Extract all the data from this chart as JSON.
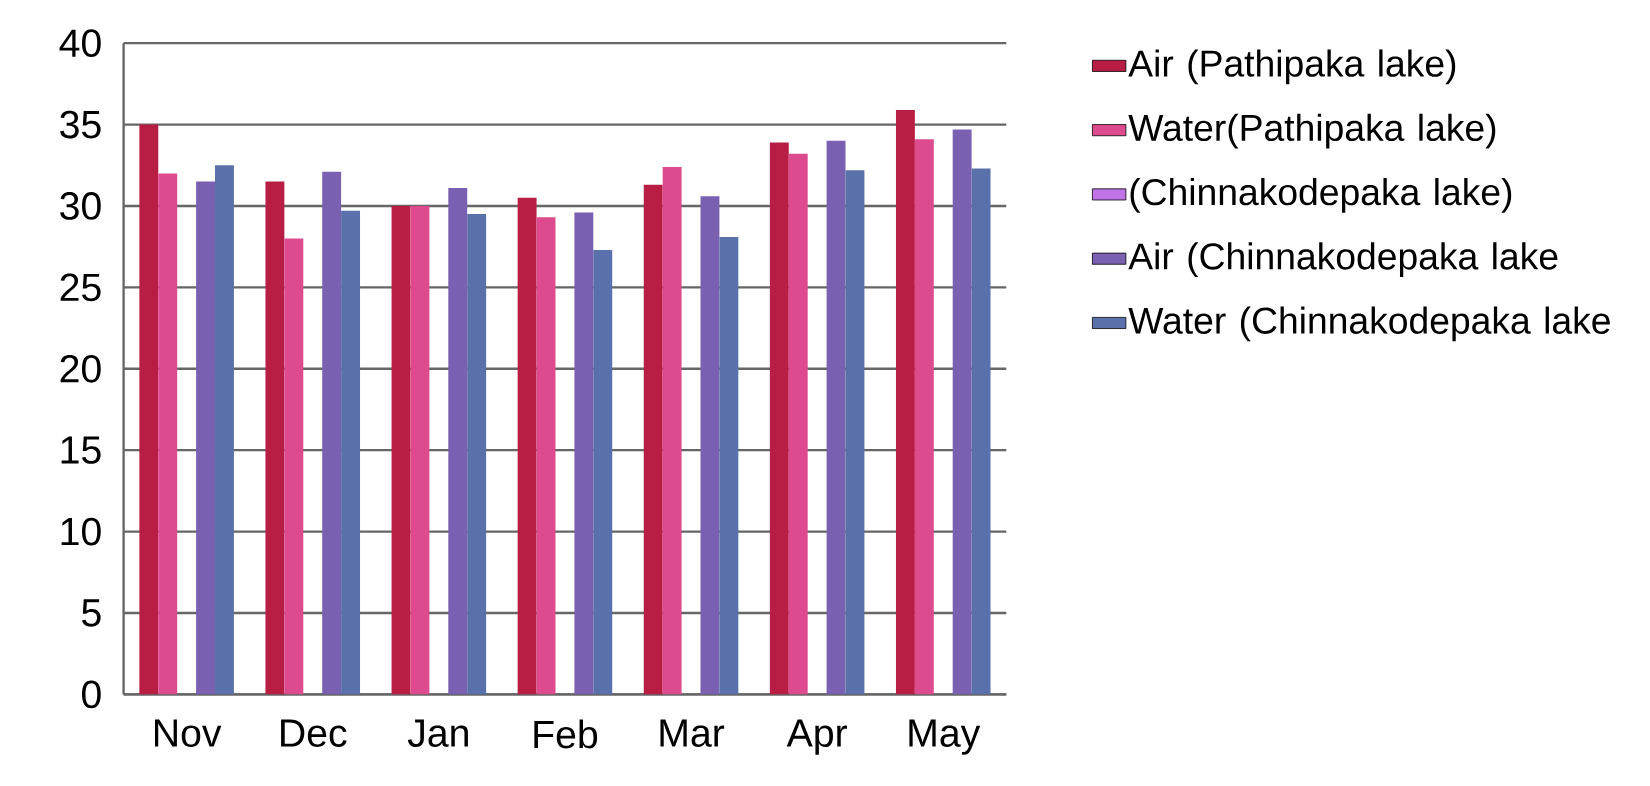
{
  "chart_data": {
    "type": "bar",
    "categories": [
      "Nov",
      "Dec",
      "Jan",
      "Feb",
      "Mar",
      "Apr",
      "May"
    ],
    "series": [
      {
        "name": "Air (Pathipaka lake)",
        "color": "#b81e44",
        "values": [
          35.0,
          31.5,
          30.0,
          30.5,
          31.3,
          33.9,
          35.9
        ]
      },
      {
        "name": "Water(Pathipaka lake)",
        "color": "#de4a8e",
        "values": [
          32.0,
          28.0,
          30.0,
          29.3,
          32.4,
          33.2,
          34.1
        ]
      },
      {
        "name": "(Chinnakodepaka lake)",
        "color": "#bf73e6",
        "values": [
          null,
          null,
          null,
          null,
          null,
          null,
          null
        ]
      },
      {
        "name": "Air (Chinnakodepaka lake",
        "color": "#7a60b0",
        "values": [
          31.5,
          32.1,
          31.1,
          29.6,
          30.6,
          34.0,
          34.7
        ]
      },
      {
        "name": "Water (Chinnakodepaka lake",
        "color": "#5a70aa",
        "values": [
          32.5,
          29.7,
          29.5,
          27.3,
          28.1,
          32.2,
          32.3
        ]
      }
    ],
    "ylim": [
      0,
      40
    ],
    "yticks": [
      0,
      5,
      10,
      15,
      20,
      25,
      30,
      35,
      40
    ],
    "grid": "y",
    "legend": "right"
  }
}
